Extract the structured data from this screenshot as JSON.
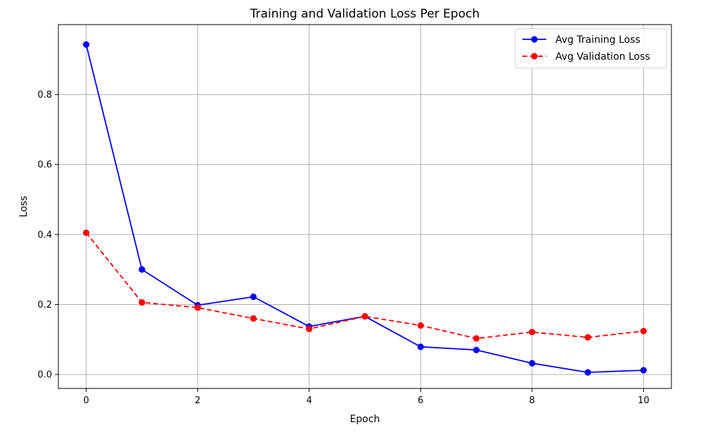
{
  "chart_data": {
    "type": "line",
    "title": "Training and Validation Loss Per Epoch",
    "xlabel": "Epoch",
    "ylabel": "Loss",
    "x": [
      0,
      1,
      2,
      3,
      4,
      5,
      6,
      7,
      8,
      9,
      10
    ],
    "xlim": [
      -0.5,
      10.5
    ],
    "ylim": [
      -0.04,
      1.0
    ],
    "xticks": [
      0,
      2,
      4,
      6,
      8,
      10
    ],
    "xtick_labels": [
      "0",
      "2",
      "4",
      "6",
      "8",
      "10"
    ],
    "yticks": [
      0.0,
      0.2,
      0.4,
      0.6,
      0.8
    ],
    "ytick_labels": [
      "0.0",
      "0.2",
      "0.4",
      "0.6",
      "0.8"
    ],
    "grid": true,
    "legend_position": "top-right",
    "series": [
      {
        "name": "Avg Training Loss",
        "color": "#0000ff",
        "line_style": "solid",
        "marker": "circle",
        "values": [
          0.943,
          0.3,
          0.198,
          0.222,
          0.137,
          0.166,
          0.079,
          0.07,
          0.032,
          0.006,
          0.012
        ]
      },
      {
        "name": "Avg Validation Loss",
        "color": "#ff0000",
        "line_style": "dashed",
        "marker": "circle",
        "values": [
          0.405,
          0.206,
          0.191,
          0.16,
          0.13,
          0.166,
          0.14,
          0.103,
          0.121,
          0.106,
          0.124
        ]
      }
    ]
  }
}
